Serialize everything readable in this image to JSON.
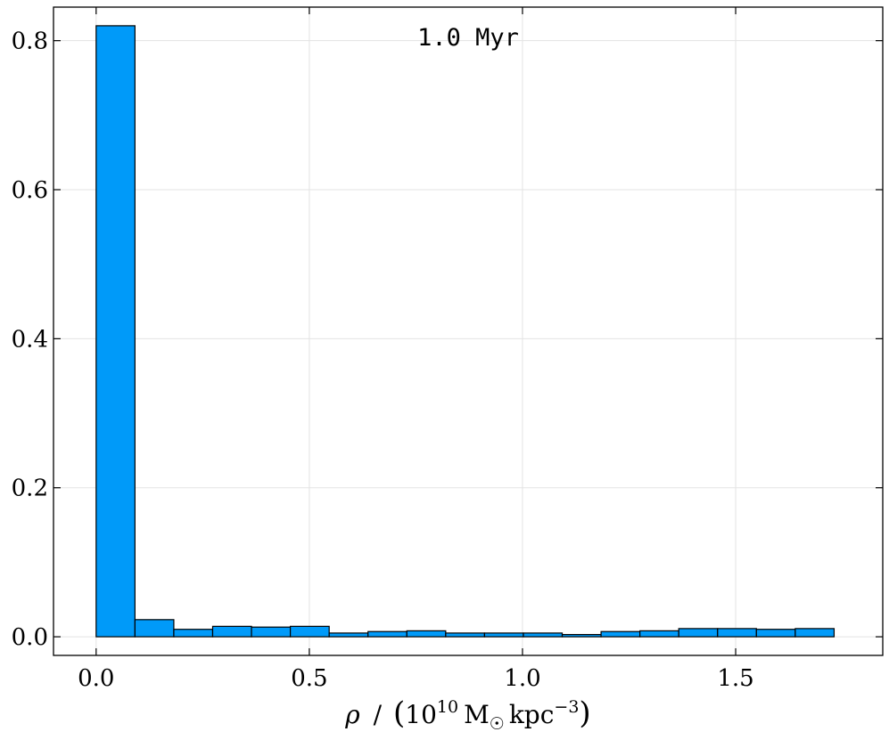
{
  "chart_data": {
    "type": "bar",
    "annotation": "1.0 Myr",
    "xlabel": "ρ / (10¹⁰ M☉ kpc⁻³)",
    "xlabel_parts": {
      "symbol": "ρ",
      "slash": "/",
      "mantissa": "10",
      "exponent": "10",
      "unit_mass": "M",
      "unit_sun": "☉",
      "unit_len": "kpc",
      "unit_exp": "−3"
    },
    "ylabel": "",
    "xlim": [
      -0.1,
      1.845
    ],
    "ylim": [
      -0.025,
      0.845
    ],
    "xticks": [
      0.0,
      0.5,
      1.0,
      1.5
    ],
    "xtick_labels": [
      "0.0",
      "0.5",
      "1.0",
      "1.5"
    ],
    "yticks": [
      0.0,
      0.2,
      0.4,
      0.6,
      0.8
    ],
    "ytick_labels": [
      "0.0",
      "0.2",
      "0.4",
      "0.6",
      "0.8"
    ],
    "bin_edges": [
      0.0,
      0.0911,
      0.1822,
      0.2733,
      0.3644,
      0.4555,
      0.5466,
      0.6377,
      0.7288,
      0.8199,
      0.911,
      1.0021,
      1.0932,
      1.1843,
      1.2754,
      1.3665,
      1.4576,
      1.5487,
      1.6398,
      1.7309
    ],
    "values": [
      0.82,
      0.023,
      0.01,
      0.014,
      0.013,
      0.014,
      0.005,
      0.007,
      0.008,
      0.005,
      0.005,
      0.005,
      0.003,
      0.007,
      0.008,
      0.011,
      0.011,
      0.01,
      0.011
    ],
    "colors": {
      "bar": "#009af9",
      "edge": "#000000",
      "grid": "#e3e3e3"
    },
    "grid": true
  }
}
